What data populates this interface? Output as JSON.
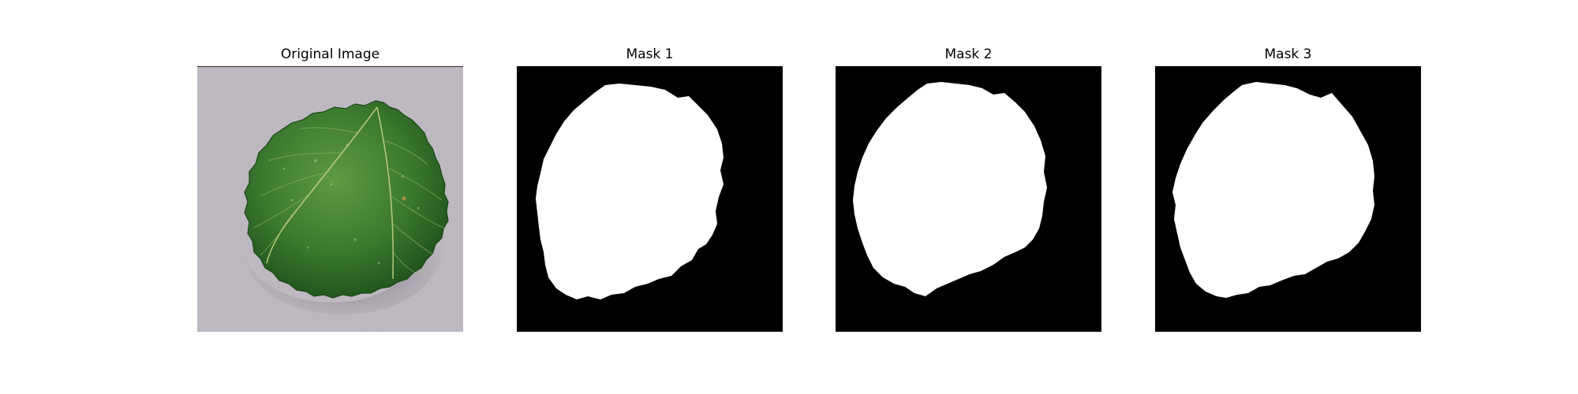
{
  "panels": [
    {
      "title": "Original Image",
      "kind": "photo",
      "subject": "strawberry-leaf"
    },
    {
      "title": "Mask 1",
      "kind": "mask"
    },
    {
      "title": "Mask 2",
      "kind": "mask"
    },
    {
      "title": "Mask 3",
      "kind": "mask"
    }
  ],
  "colors": {
    "background": "#ffffff",
    "mask_background": "#000000",
    "mask_foreground": "#ffffff",
    "photo_surface": "#bab4bd",
    "leaf_dark": "#1f5a1c",
    "leaf_mid": "#3f7f34",
    "leaf_light": "#7fae55",
    "leaf_vein": "#c6d48a"
  }
}
